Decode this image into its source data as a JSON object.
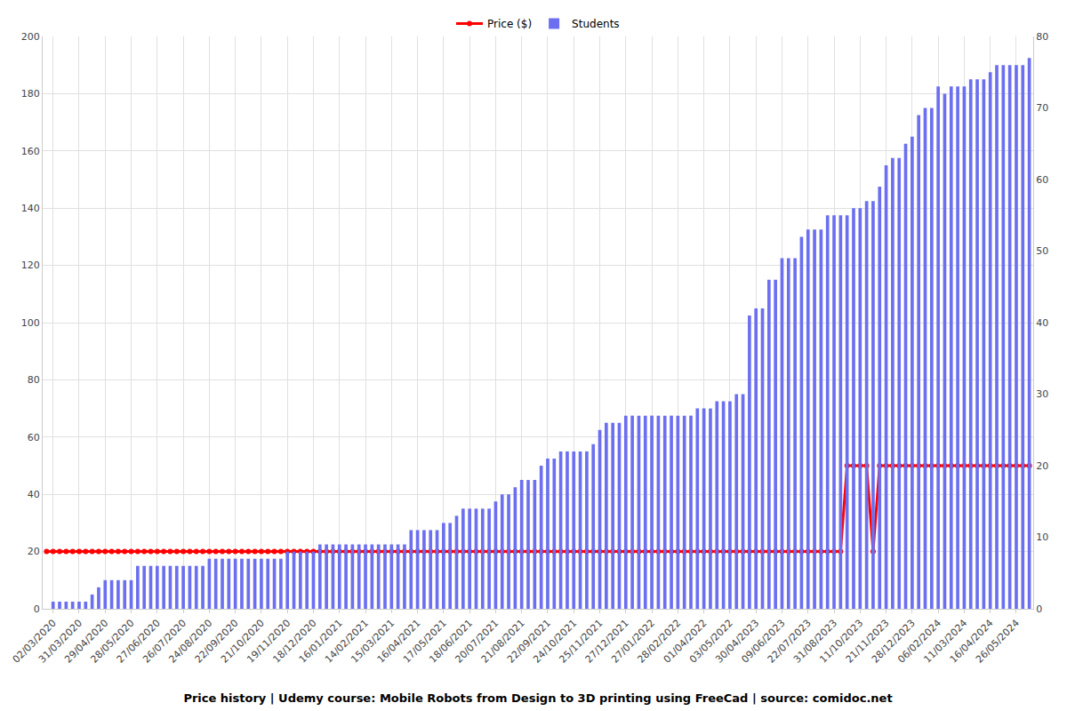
{
  "chart_data": {
    "type": "bar",
    "title": "Price history | Udemy course: Mobile Robots from Design to 3D printing using FreeCad | source: comidoc.net",
    "categories": [
      null,
      "02/03/2020",
      null,
      null,
      null,
      "31/03/2020",
      null,
      null,
      null,
      "29/04/2020",
      null,
      null,
      null,
      "28/05/2020",
      null,
      null,
      null,
      "27/06/2020",
      null,
      null,
      null,
      "26/07/2020",
      null,
      null,
      null,
      "24/08/2020",
      null,
      null,
      null,
      "22/09/2020",
      null,
      null,
      null,
      "21/10/2020",
      null,
      null,
      null,
      "19/11/2020",
      null,
      null,
      null,
      "18/12/2020",
      null,
      null,
      null,
      "16/01/2021",
      null,
      null,
      null,
      "14/02/2021",
      null,
      null,
      null,
      "15/03/2021",
      null,
      null,
      null,
      "16/04/2021",
      null,
      null,
      null,
      "17/05/2021",
      null,
      null,
      null,
      "18/06/2021",
      null,
      null,
      null,
      "20/07/2021",
      null,
      null,
      null,
      "21/08/2021",
      null,
      null,
      null,
      "22/09/2021",
      null,
      null,
      null,
      "24/10/2021",
      null,
      null,
      null,
      "25/11/2021",
      null,
      null,
      null,
      "27/12/2021",
      null,
      null,
      null,
      "27/01/2022",
      null,
      null,
      null,
      "28/02/2022",
      null,
      null,
      null,
      "01/04/2022",
      null,
      null,
      null,
      "03/05/2022",
      null,
      null,
      null,
      "30/04/2023",
      null,
      null,
      null,
      "09/06/2023",
      null,
      null,
      null,
      "22/07/2023",
      null,
      null,
      null,
      "31/08/2023",
      null,
      null,
      null,
      "11/10/2023",
      null,
      null,
      null,
      "21/11/2023",
      null,
      null,
      null,
      "28/12/2023",
      null,
      null,
      null,
      "06/02/2024",
      null,
      null,
      null,
      "11/03/2024",
      null,
      null,
      null,
      "16/04/2024",
      null,
      null,
      null,
      "26/05/2024",
      null,
      null
    ],
    "series": [
      {
        "name": "Price ($)",
        "type": "line",
        "color": "#ff0000",
        "marker": "circle",
        "values": [
          20,
          20,
          20,
          20,
          20,
          20,
          20,
          20,
          20,
          20,
          20,
          20,
          20,
          20,
          20,
          20,
          20,
          20,
          20,
          20,
          20,
          20,
          20,
          20,
          20,
          20,
          20,
          20,
          20,
          20,
          20,
          20,
          20,
          20,
          20,
          20,
          20,
          20,
          20,
          20,
          20,
          20,
          20,
          20,
          20,
          20,
          20,
          20,
          20,
          20,
          20,
          20,
          20,
          20,
          20,
          20,
          20,
          20,
          20,
          20,
          20,
          20,
          20,
          20,
          20,
          20,
          20,
          20,
          20,
          20,
          20,
          20,
          20,
          20,
          20,
          20,
          20,
          20,
          20,
          20,
          20,
          20,
          20,
          20,
          20,
          20,
          20,
          20,
          20,
          20,
          20,
          20,
          20,
          20,
          20,
          20,
          20,
          20,
          20,
          20,
          20,
          20,
          20,
          20,
          20,
          20,
          20,
          20,
          20,
          20,
          20,
          20,
          20,
          20,
          20,
          20,
          20,
          20,
          20,
          20,
          20,
          20,
          20,
          50,
          50,
          50,
          50,
          20,
          50,
          50,
          50,
          50,
          50,
          50,
          50,
          50,
          50,
          50,
          50,
          50,
          50,
          50,
          50,
          50,
          50,
          50,
          50,
          50,
          50,
          50,
          50,
          50
        ]
      },
      {
        "name": "Students",
        "type": "bar",
        "color": "#6b6ff0",
        "axis": "y2",
        "values": [
          0,
          1,
          1,
          1,
          1,
          1,
          1,
          2,
          3,
          4,
          4,
          4,
          4,
          4,
          6,
          6,
          6,
          6,
          6,
          6,
          6,
          6,
          6,
          6,
          6,
          7,
          7,
          7,
          7,
          7,
          7,
          7,
          7,
          7,
          7,
          7,
          7,
          8,
          8,
          8,
          8,
          8,
          9,
          9,
          9,
          9,
          9,
          9,
          9,
          9,
          9,
          9,
          9,
          9,
          9,
          9,
          11,
          11,
          11,
          11,
          11,
          12,
          12,
          13,
          14,
          14,
          14,
          14,
          14,
          15,
          16,
          16,
          17,
          18,
          18,
          18,
          20,
          21,
          21,
          22,
          22,
          22,
          22,
          22,
          23,
          25,
          26,
          26,
          26,
          27,
          27,
          27,
          27,
          27,
          27,
          27,
          27,
          27,
          27,
          27,
          28,
          28,
          28,
          29,
          29,
          29,
          30,
          30,
          41,
          42,
          42,
          46,
          46,
          49,
          49,
          49,
          52,
          53,
          53,
          53,
          55,
          55,
          55,
          55,
          56,
          56,
          57,
          57,
          59,
          62,
          63,
          63,
          65,
          66,
          69,
          70,
          70,
          73,
          72,
          73,
          73,
          73,
          74,
          74,
          74,
          75,
          76,
          76,
          76,
          76,
          76,
          77
        ]
      }
    ],
    "ylim": [
      0,
      200
    ],
    "yticks": [
      0,
      20,
      40,
      60,
      80,
      100,
      120,
      140,
      160,
      180,
      200
    ],
    "y2lim": [
      0,
      80
    ],
    "y2ticks": [
      0,
      10,
      20,
      30,
      40,
      50,
      60,
      70,
      80
    ],
    "grid": true,
    "legend": "top"
  }
}
